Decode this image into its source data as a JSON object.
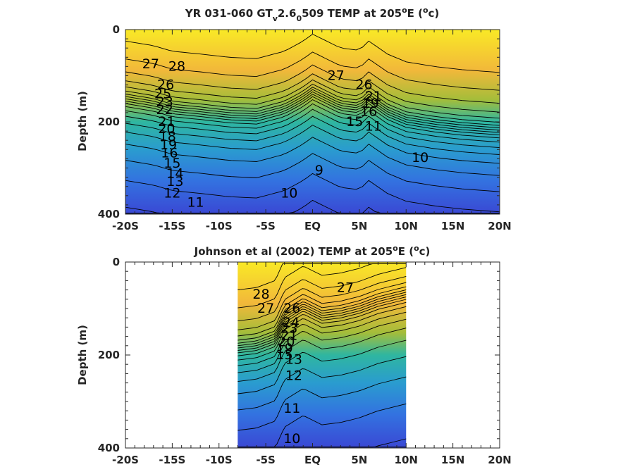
{
  "chart_data": [
    {
      "type": "contour",
      "id": "model",
      "title_parts": {
        "prefix": "YR 031-060 GT",
        "sub1": "v",
        "mid": "2.6",
        "sub2": "0",
        "suffix": "509 TEMP at 205",
        "sup1": "o",
        "after_sup": "E (",
        "sup2": "o",
        "unit_end": "c)"
      },
      "ylabel": "Depth (m)",
      "xlim": [
        -20,
        20
      ],
      "ylim": [
        0,
        400
      ],
      "x_ticks": [
        {
          "v": -20,
          "label": "-20S"
        },
        {
          "v": -15,
          "label": "-15S"
        },
        {
          "v": -10,
          "label": "-10S"
        },
        {
          "v": -5,
          "label": "-5S"
        },
        {
          "v": 0,
          "label": "EQ"
        },
        {
          "v": 5,
          "label": "5N"
        },
        {
          "v": 10,
          "label": "10N"
        },
        {
          "v": 15,
          "label": "15N"
        },
        {
          "v": 20,
          "label": "20N"
        }
      ],
      "y_ticks": [
        {
          "v": 0,
          "label": "0"
        },
        {
          "v": 200,
          "label": "200"
        },
        {
          "v": 400,
          "label": "400"
        }
      ],
      "data_extent": [
        -20,
        20
      ],
      "thermocline_depth_m": [
        [
          -20,
          150
        ],
        [
          -17,
          160
        ],
        [
          -15,
          172
        ],
        [
          -12,
          178
        ],
        [
          -9,
          185
        ],
        [
          -6,
          188
        ],
        [
          -3,
          172
        ],
        [
          -1,
          150
        ],
        [
          0,
          135
        ],
        [
          1,
          145
        ],
        [
          3,
          165
        ],
        [
          5,
          170
        ],
        [
          6,
          150
        ],
        [
          8,
          178
        ],
        [
          10,
          195
        ],
        [
          13,
          205
        ],
        [
          16,
          212
        ],
        [
          20,
          218
        ]
      ],
      "contour_labels": [
        {
          "x": -17.3,
          "y": 75,
          "text": "27"
        },
        {
          "x": -14.5,
          "y": 80,
          "text": "28"
        },
        {
          "x": -15.7,
          "y": 120,
          "text": "26"
        },
        {
          "x": -16.0,
          "y": 140,
          "text": "25"
        },
        {
          "x": -15.8,
          "y": 157,
          "text": "23"
        },
        {
          "x": -15.8,
          "y": 174,
          "text": "22"
        },
        {
          "x": -15.6,
          "y": 200,
          "text": "21"
        },
        {
          "x": -15.6,
          "y": 215,
          "text": "20"
        },
        {
          "x": -15.5,
          "y": 232,
          "text": "18"
        },
        {
          "x": -15.4,
          "y": 250,
          "text": "19"
        },
        {
          "x": -15.3,
          "y": 268,
          "text": "16"
        },
        {
          "x": -15.0,
          "y": 290,
          "text": "15"
        },
        {
          "x": -14.7,
          "y": 312,
          "text": "14"
        },
        {
          "x": -14.7,
          "y": 330,
          "text": "13"
        },
        {
          "x": -15.0,
          "y": 355,
          "text": "12"
        },
        {
          "x": -12.5,
          "y": 375,
          "text": "11"
        },
        {
          "x": -2.5,
          "y": 355,
          "text": "10"
        },
        {
          "x": 2.5,
          "y": 100,
          "text": "27"
        },
        {
          "x": 5.5,
          "y": 120,
          "text": "26"
        },
        {
          "x": 6.5,
          "y": 145,
          "text": "21"
        },
        {
          "x": 6.2,
          "y": 160,
          "text": "19"
        },
        {
          "x": 6.0,
          "y": 178,
          "text": "16"
        },
        {
          "x": 4.5,
          "y": 200,
          "text": "15"
        },
        {
          "x": 6.5,
          "y": 210,
          "text": "11"
        },
        {
          "x": 0.7,
          "y": 305,
          "text": "9"
        },
        {
          "x": 11.5,
          "y": 278,
          "text": "10"
        }
      ]
    },
    {
      "type": "contour",
      "id": "observations",
      "title_parts": {
        "prefix": "Johnson et al (2002) TEMP at 205",
        "sup1": "o",
        "after_sup": "E (",
        "sup2": "o",
        "unit_end": "c)"
      },
      "ylabel": "Depth (m)",
      "xlim": [
        -20,
        20
      ],
      "ylim": [
        0,
        400
      ],
      "x_ticks": [
        {
          "v": -20,
          "label": "-20S"
        },
        {
          "v": -15,
          "label": "-15S"
        },
        {
          "v": -10,
          "label": "-10S"
        },
        {
          "v": -5,
          "label": "-5S"
        },
        {
          "v": 0,
          "label": "EQ"
        },
        {
          "v": 5,
          "label": "5N"
        },
        {
          "v": 10,
          "label": "10N"
        },
        {
          "v": 15,
          "label": "15N"
        },
        {
          "v": 20,
          "label": "20N"
        }
      ],
      "y_ticks": [
        {
          "v": 0,
          "label": "0"
        },
        {
          "v": 200,
          "label": "200"
        },
        {
          "v": 400,
          "label": "400"
        }
      ],
      "data_extent": [
        -8,
        10
      ],
      "thermocline_depth_m": [
        [
          -8,
          185
        ],
        [
          -6,
          180
        ],
        [
          -4,
          165
        ],
        [
          -3,
          120
        ],
        [
          -1,
          95
        ],
        [
          0,
          105
        ],
        [
          1,
          115
        ],
        [
          3,
          110
        ],
        [
          5,
          100
        ],
        [
          7,
          85
        ],
        [
          9,
          75
        ],
        [
          10,
          70
        ]
      ],
      "contour_labels": [
        {
          "x": -5.5,
          "y": 70,
          "text": "28"
        },
        {
          "x": -5.0,
          "y": 100,
          "text": "27"
        },
        {
          "x": -2.2,
          "y": 100,
          "text": "26"
        },
        {
          "x": -2.3,
          "y": 130,
          "text": "24"
        },
        {
          "x": -2.5,
          "y": 143,
          "text": "23"
        },
        {
          "x": -2.5,
          "y": 158,
          "text": "21"
        },
        {
          "x": -2.8,
          "y": 172,
          "text": "20"
        },
        {
          "x": -3.0,
          "y": 186,
          "text": "19"
        },
        {
          "x": -3.0,
          "y": 200,
          "text": "15"
        },
        {
          "x": -2.0,
          "y": 210,
          "text": "13"
        },
        {
          "x": -2.0,
          "y": 245,
          "text": "12"
        },
        {
          "x": -2.2,
          "y": 315,
          "text": "11"
        },
        {
          "x": -2.2,
          "y": 380,
          "text": "10"
        },
        {
          "x": 3.5,
          "y": 55,
          "text": "27"
        }
      ]
    }
  ]
}
